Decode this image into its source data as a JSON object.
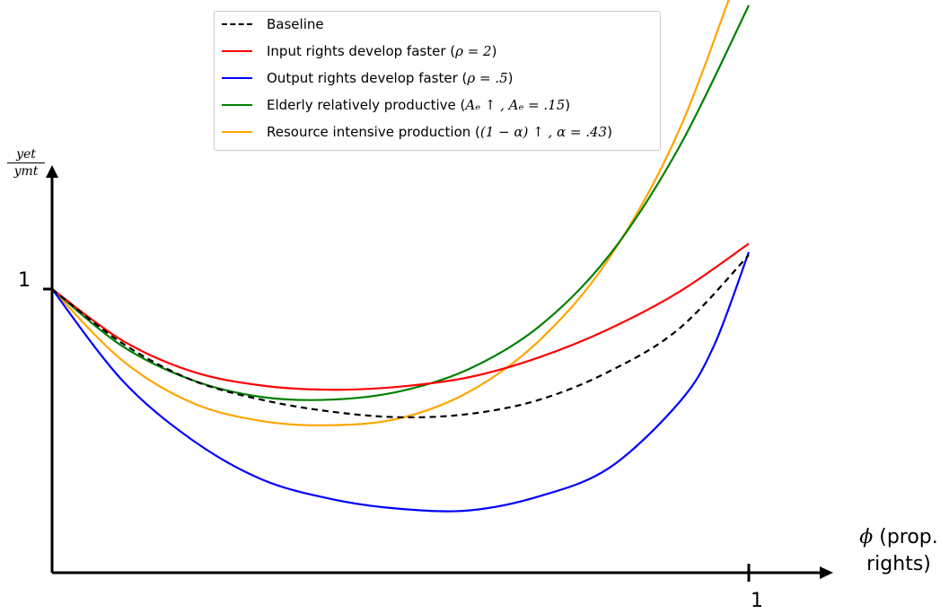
{
  "chart_data": {
    "type": "line",
    "xlabel": "ϕ (prop. rights)",
    "xlabel_symbol": "ϕ",
    "xlabel_text": "(prop. rights)",
    "ylabel_num": "yet",
    "ylabel_den": "ymt",
    "xlim": [
      0,
      1.1
    ],
    "ylim": [
      0,
      1.55
    ],
    "x_ticks": [
      {
        "value": 1,
        "label": "1"
      }
    ],
    "y_ticks": [
      {
        "value": 1,
        "label": "1"
      }
    ],
    "legend_position": "top-center",
    "grid": false,
    "series": [
      {
        "name": "Baseline",
        "color": "#000000",
        "dashed": true,
        "x": [
          0,
          0.1,
          0.2,
          0.3,
          0.4,
          0.5,
          0.6,
          0.7,
          0.8,
          0.9,
          1.0
        ],
        "y": [
          1.0,
          0.81,
          0.68,
          0.61,
          0.568,
          0.548,
          0.56,
          0.61,
          0.71,
          0.86,
          1.12
        ]
      },
      {
        "name": "Input rights develop faster (ρ=2)",
        "color": "#ff0000",
        "dashed": false,
        "x": [
          0,
          0.1,
          0.2,
          0.3,
          0.4,
          0.5,
          0.6,
          0.7,
          0.8,
          0.9,
          1.0
        ],
        "y": [
          1.0,
          0.82,
          0.71,
          0.66,
          0.645,
          0.656,
          0.69,
          0.76,
          0.86,
          0.99,
          1.16
        ]
      },
      {
        "name": "Output rights develop faster (ρ=.5)",
        "color": "#0000ff",
        "dashed": false,
        "x": [
          0,
          0.1,
          0.2,
          0.3,
          0.4,
          0.5,
          0.6,
          0.7,
          0.8,
          0.9,
          0.95,
          1.0
        ],
        "y": [
          1.0,
          0.68,
          0.47,
          0.33,
          0.26,
          0.225,
          0.22,
          0.27,
          0.37,
          0.6,
          0.8,
          1.13
        ]
      },
      {
        "name": "Elderly relatively productive (Ae↑, Ae=.15)",
        "color": "#008000",
        "dashed": false,
        "x": [
          0,
          0.1,
          0.2,
          0.3,
          0.4,
          0.5,
          0.6,
          0.7,
          0.8,
          0.9,
          1.0
        ],
        "y": [
          1.0,
          0.8,
          0.68,
          0.62,
          0.61,
          0.64,
          0.72,
          0.87,
          1.12,
          1.5,
          2.0
        ]
      },
      {
        "name": "Resource intensive production ((1−α)↑, α=.43)",
        "color": "#ffa500",
        "dashed": false,
        "x": [
          0,
          0.1,
          0.2,
          0.3,
          0.4,
          0.5,
          0.6,
          0.7,
          0.8,
          0.9,
          1.0
        ],
        "y": [
          1.0,
          0.75,
          0.6,
          0.535,
          0.52,
          0.545,
          0.64,
          0.82,
          1.11,
          1.56,
          2.22
        ]
      }
    ]
  },
  "legend_items": [
    {
      "pre": "Baseline",
      "math": "",
      "post": ""
    },
    {
      "pre": "Input rights develop faster (",
      "math": "ρ = 2",
      "post": ")"
    },
    {
      "pre": "Output rights develop faster (",
      "math": "ρ = .5",
      "post": ")"
    },
    {
      "pre": "Elderly relatively productive (",
      "math": "Aₑ ↑ , Aₑ = .15",
      "post": ")"
    },
    {
      "pre": "Resource intensive production (",
      "math": "(1 − α) ↑ , α = .43",
      "post": ")"
    }
  ]
}
